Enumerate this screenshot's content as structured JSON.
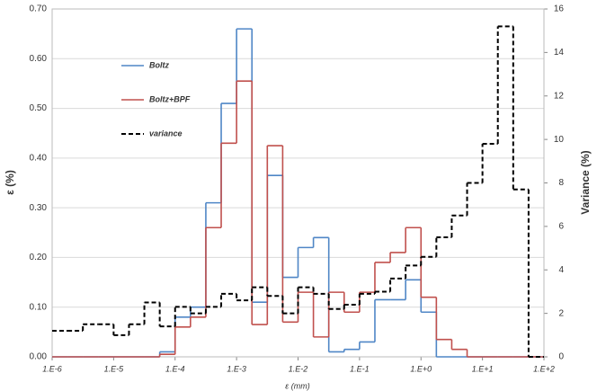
{
  "chart_data": {
    "type": "histogram",
    "x_label": "ε (mm)",
    "y_label": "ε (%)",
    "y2_label": "Variance (%)",
    "log_x": true,
    "grid": true,
    "legend": "upper-left",
    "bins": [
      1e-06,
      1.778e-06,
      3.162e-06,
      5.623e-06,
      1e-05,
      1.778e-05,
      3.162e-05,
      5.623e-05,
      0.0001,
      0.0001778,
      0.0003162,
      0.0005623,
      0.001,
      0.001778,
      0.003162,
      0.005623,
      0.01,
      0.01778,
      0.03162,
      0.05623,
      0.1,
      0.1778,
      0.3162,
      0.5623,
      1,
      1.778,
      3.162,
      5.623,
      10,
      17.78,
      31.62,
      56.23,
      100
    ],
    "series": [
      {
        "name": "Boltz",
        "color": "#4f86c6",
        "dash": false,
        "values": [
          0,
          0,
          0,
          0,
          0,
          0,
          0,
          0.01,
          0.08,
          0.1,
          0.31,
          0.51,
          0.66,
          0.11,
          0.365,
          0.16,
          0.22,
          0.24,
          0.01,
          0.015,
          0.03,
          0.115,
          0.115,
          0.155,
          0.09,
          0,
          0,
          0,
          0,
          0,
          0,
          0
        ]
      },
      {
        "name": "Boltz+BPF",
        "color": "#c0504d",
        "dash": false,
        "values": [
          0,
          0,
          0,
          0,
          0,
          0,
          0,
          0.005,
          0.06,
          0.08,
          0.26,
          0.43,
          0.555,
          0.065,
          0.425,
          0.07,
          0.13,
          0.04,
          0.13,
          0.09,
          0.13,
          0.19,
          0.21,
          0.26,
          0.12,
          0.035,
          0.015,
          0,
          0,
          0,
          0,
          0
        ]
      },
      {
        "name": "variance",
        "color": "#000000",
        "dash": true,
        "axis": "y2",
        "values": [
          1.2,
          1.2,
          1.5,
          1.5,
          1.0,
          1.5,
          2.5,
          1.4,
          2.3,
          2.0,
          2.3,
          2.9,
          2.6,
          3.2,
          2.8,
          2.0,
          3.2,
          2.9,
          2.2,
          2.4,
          2.9,
          3.0,
          3.6,
          4.2,
          4.6,
          5.5,
          6.5,
          8.0,
          9.8,
          15.2,
          7.7,
          0
        ]
      }
    ],
    "xlim": [
      1e-06,
      100
    ],
    "xticks": [
      {
        "value": 1e-06,
        "label": "1.E-6"
      },
      {
        "value": 1e-05,
        "label": "1.E-5"
      },
      {
        "value": 0.0001,
        "label": "1.E-4"
      },
      {
        "value": 0.001,
        "label": "1.E-3"
      },
      {
        "value": 0.01,
        "label": "1.E-2"
      },
      {
        "value": 0.1,
        "label": "1.E-1"
      },
      {
        "value": 1,
        "label": "1.E+0"
      },
      {
        "value": 10,
        "label": "1.E+1"
      },
      {
        "value": 100,
        "label": "1.E+2"
      }
    ],
    "ylim": [
      0,
      0.7
    ],
    "yticks": [
      {
        "value": 0,
        "label": "0.00"
      },
      {
        "value": 0.1,
        "label": "0.10"
      },
      {
        "value": 0.2,
        "label": "0.20"
      },
      {
        "value": 0.3,
        "label": "0.30"
      },
      {
        "value": 0.4,
        "label": "0.40"
      },
      {
        "value": 0.5,
        "label": "0.50"
      },
      {
        "value": 0.6,
        "label": "0.60"
      },
      {
        "value": 0.7,
        "label": "0.70"
      }
    ],
    "y2lim": [
      0,
      16
    ],
    "y2ticks": [
      0,
      2,
      4,
      6,
      8,
      10,
      12,
      14,
      16
    ]
  }
}
